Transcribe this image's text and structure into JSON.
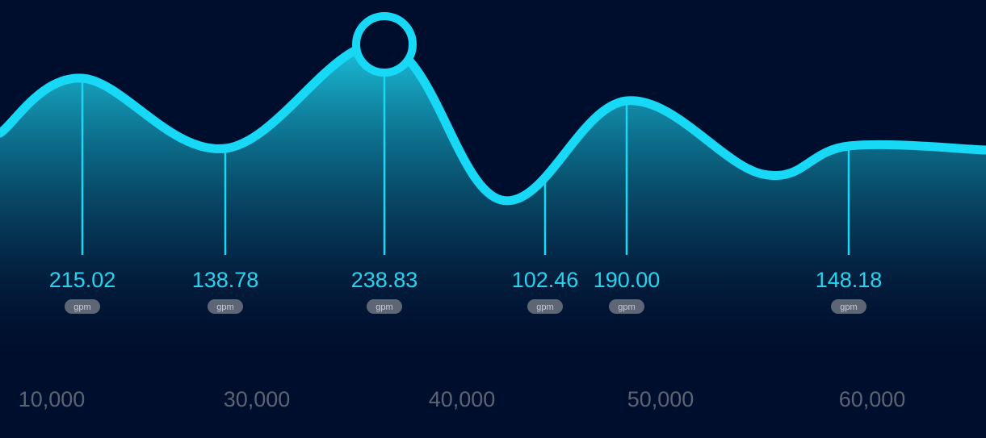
{
  "colors": {
    "background": "#000e2d",
    "line": "#17d8f5",
    "label": "#27d3ee",
    "pill": "#5d6675",
    "pill_text": "#c9ced6",
    "tick": "#5b6473"
  },
  "chart_data": {
    "type": "area",
    "title": "",
    "xlabel": "",
    "ylabel": "",
    "x_ticks": [
      "10,000",
      "30,000",
      "40,000",
      "50,000",
      "60,000"
    ],
    "unit": "gpm",
    "highlight_index": 2,
    "grid": false,
    "points": [
      {
        "label": "215.02",
        "unit": "gpm"
      },
      {
        "label": "138.78",
        "unit": "gpm"
      },
      {
        "label": "238.83",
        "unit": "gpm"
      },
      {
        "label": "102.46",
        "unit": "gpm"
      },
      {
        "label": "190.00",
        "unit": "gpm"
      },
      {
        "label": "148.18",
        "unit": "gpm"
      }
    ],
    "values": [
      215.02,
      138.78,
      238.83,
      102.46,
      190.0,
      148.18
    ]
  }
}
